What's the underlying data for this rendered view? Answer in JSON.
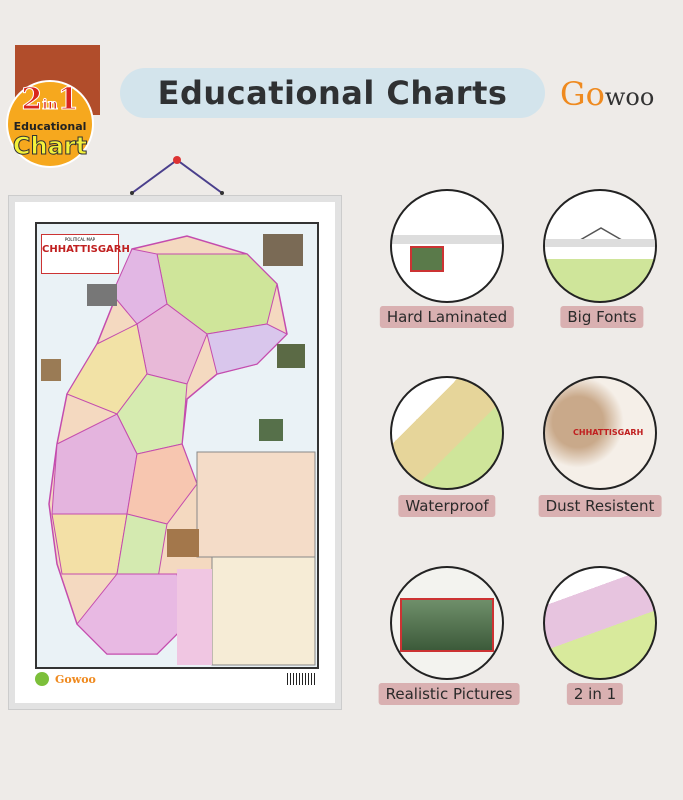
{
  "badge": {
    "number_left": "2",
    "in": "in",
    "number_right": "1",
    "line1": "Educational",
    "line2": "Chart"
  },
  "header": {
    "title": "Educational Charts"
  },
  "brand": {
    "logo_first": "Go",
    "logo_rest": "woo"
  },
  "poster": {
    "map_title": "CHHATTISGARH",
    "map_subtitle": "POLITICAL MAP",
    "footer_brand": "Gowoo"
  },
  "features": [
    {
      "label": "Hard Laminated"
    },
    {
      "label": "Big Fonts"
    },
    {
      "label": "Waterproof"
    },
    {
      "label": "Dust Resistent"
    },
    {
      "label": "Realistic Pictures"
    },
    {
      "label": "2 in 1"
    }
  ],
  "colors": {
    "accent_pill": "#d3e4ec",
    "label_bg": "#d9b0b1",
    "badge_orange": "#f6a81e",
    "badge_brown": "#b14d2b",
    "brand_orange": "#ef8a1f"
  }
}
